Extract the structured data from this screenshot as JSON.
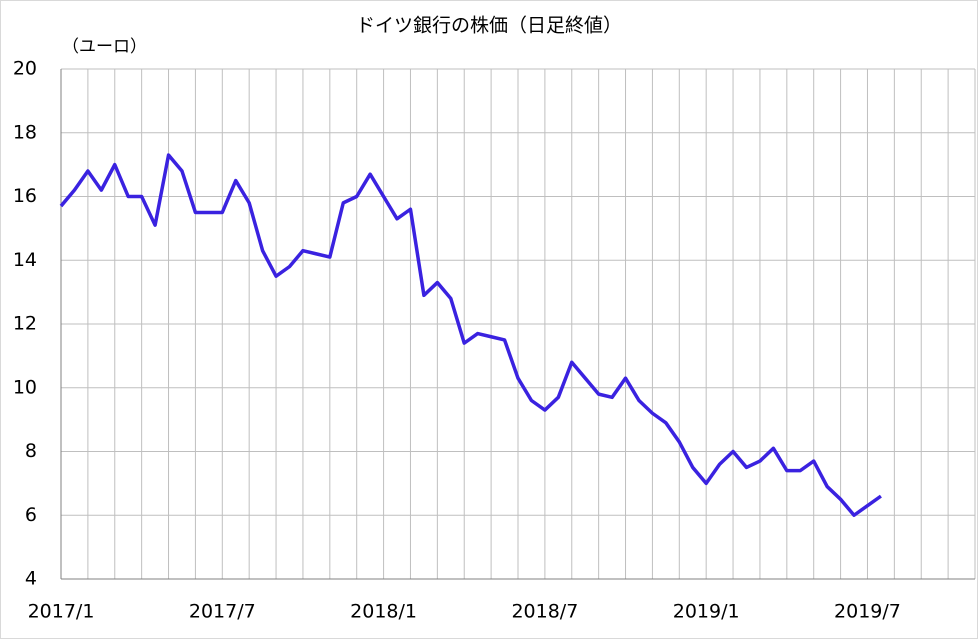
{
  "chart_data": {
    "type": "line",
    "title": "ドイツ銀行の株価（日足終値）",
    "y_label": "（ユーロ）",
    "categories": [
      "2017/1",
      null,
      null,
      null,
      null,
      null,
      null,
      null,
      null,
      null,
      null,
      null,
      "2017/7",
      null,
      null,
      null,
      null,
      null,
      null,
      null,
      null,
      null,
      null,
      null,
      "2018/1",
      null,
      null,
      null,
      null,
      null,
      null,
      null,
      null,
      null,
      null,
      null,
      "2018/7",
      null,
      null,
      null,
      null,
      null,
      null,
      null,
      null,
      null,
      null,
      null,
      "2019/1",
      null,
      null,
      null,
      null,
      null,
      null,
      null,
      null,
      null,
      null,
      null,
      "2019/7",
      null,
      null,
      null,
      null,
      null,
      null,
      null,
      null
    ],
    "values": [
      15.7,
      16.2,
      16.8,
      16.2,
      17.0,
      16.0,
      16.0,
      15.1,
      17.3,
      16.8,
      15.5,
      15.5,
      15.5,
      16.5,
      15.8,
      14.3,
      13.5,
      13.8,
      14.3,
      14.2,
      14.1,
      15.8,
      16.0,
      16.7,
      16.0,
      15.3,
      15.6,
      12.9,
      13.3,
      12.8,
      11.4,
      11.7,
      11.6,
      11.5,
      10.3,
      9.6,
      9.3,
      9.7,
      10.8,
      10.3,
      9.8,
      9.7,
      10.3,
      9.6,
      9.2,
      8.9,
      8.3,
      7.5,
      7.0,
      7.6,
      8.0,
      7.5,
      7.7,
      8.1,
      7.4,
      7.4,
      7.7,
      6.9,
      6.5,
      6.0,
      6.3,
      6.6,
      null,
      null,
      null,
      null,
      null,
      null,
      null
    ],
    "color": "#3a22e0",
    "ylim": [
      4,
      20
    ],
    "yticks": [
      4,
      6,
      8,
      10,
      12,
      14,
      16,
      18,
      20
    ],
    "grid": true
  }
}
